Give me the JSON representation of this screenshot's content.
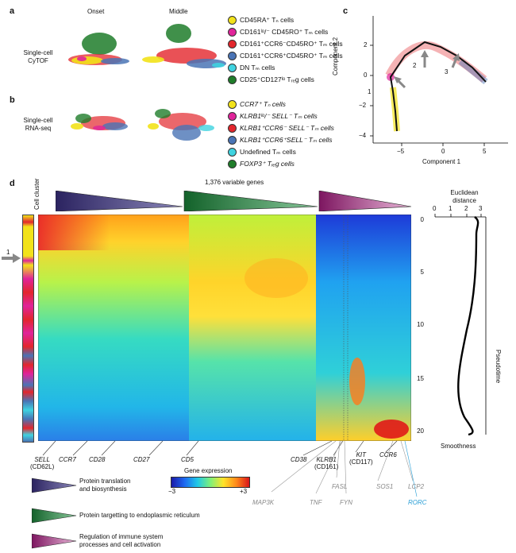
{
  "panels": {
    "a": {
      "label": "a",
      "col1": "Onset",
      "col2": "Middle",
      "row_label_line1": "Single-cell",
      "row_label_line2": "CyTOF",
      "legend": [
        {
          "text": "CD45RA⁺ Tₙ cells",
          "color": "#f2e21a"
        },
        {
          "text": "CD161ˡᵒ/⁻ CD45RO⁺ Tₘ cells",
          "color": "#e0249a"
        },
        {
          "text": "CD161⁺CCR6⁻CD45RO⁺ Tₘ cells",
          "color": "#e3262c"
        },
        {
          "text": "CD161⁺CCR6⁺CD45RO⁺ Tₘ cells",
          "color": "#4a74b5"
        },
        {
          "text": "DN Tₘ cells",
          "color": "#3fd3e0"
        },
        {
          "text": "CD25⁺CD127ˡᵒ Tᵣₑg cells",
          "color": "#1f7d2a"
        }
      ]
    },
    "b": {
      "label": "b",
      "row_label_line1": "Single-cell",
      "row_label_line2": "RNA-seq",
      "legend": [
        {
          "text": "CCR7⁺ Tₙ cells",
          "color": "#f2e21a"
        },
        {
          "text": "KLRB1ˡᵒ/⁻ SELL⁻ Tₘ cells",
          "color": "#e0249a"
        },
        {
          "text": "KLRB1⁺CCR6⁻ SELL⁻ Tₘ cells",
          "color": "#e3262c"
        },
        {
          "text": "KLRB1⁺CCR6⁺SELL⁻ Tₘ cells",
          "color": "#4a74b5"
        },
        {
          "text": "Undefined Tₘ cells",
          "color": "#3fd3e0"
        },
        {
          "text": "FOXP3⁺ Tᵣₑg cells",
          "color": "#1f7d2a"
        }
      ]
    },
    "c": {
      "label": "c",
      "ylabel": "Component 2",
      "xlabel": "Component 1",
      "xticks": [
        "−5",
        "0",
        "5"
      ],
      "yticks": [
        "2",
        "0",
        "−2",
        "−4"
      ],
      "arrows": [
        "1",
        "2",
        "3"
      ]
    },
    "d": {
      "label": "d",
      "cell_cluster_label": "Cell cluster",
      "genes_title": "1,376 variable genes",
      "arrow_label": "1",
      "euclid_line1": "Euclidean",
      "euclid_line2": "distance",
      "euclid_ticks": [
        "0",
        "1",
        "2",
        "3"
      ],
      "pseudotime_label": "Pseudotime",
      "pseudo_ticks": [
        "0",
        "5",
        "10",
        "15",
        "20"
      ],
      "smoothness_label": "Smoothness",
      "colorbar_title": "Gene expression",
      "colorbar_min": "−3",
      "colorbar_max": "+3",
      "genes_black": [
        {
          "name": "SELL",
          "sub": "(CD62L)"
        },
        {
          "name": "CCR7",
          "sub": ""
        },
        {
          "name": "CD28",
          "sub": ""
        },
        {
          "name": "CD27",
          "sub": ""
        },
        {
          "name": "CD5",
          "sub": ""
        },
        {
          "name": "CD38",
          "sub": ""
        },
        {
          "name": "KLRB1",
          "sub": "(CD161)"
        },
        {
          "name": "KIT",
          "sub": "(CD117)"
        },
        {
          "name": "CCR6",
          "sub": ""
        }
      ],
      "genes_gray": [
        "MAP3K",
        "FASL",
        "TNF",
        "FYN",
        "SOS1",
        "LCP2"
      ],
      "gene_blue": "RORC",
      "tri_legend": [
        {
          "line1": "Protein translation",
          "line2": "and biosynthesis",
          "color": "#3d2f78"
        },
        {
          "line1": "Protein targetting to endoplasmic reticulum",
          "line2": "",
          "color": "#1f8a3a"
        },
        {
          "line1": "Regulation of immune system",
          "line2": "processes and cell activation",
          "color": "#a0237a"
        }
      ]
    }
  }
}
